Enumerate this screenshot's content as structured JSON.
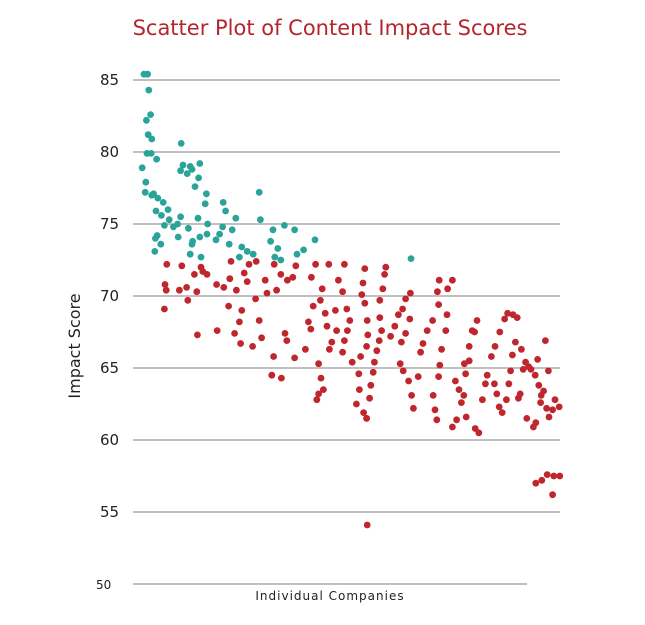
{
  "chart_data": {
    "type": "scatter",
    "title": "Scatter Plot of Content Impact Scores",
    "xlabel": "Individual Companies",
    "ylabel": "Impact Score",
    "ylim": [
      50,
      87
    ],
    "yticks": [
      50,
      55,
      60,
      65,
      70,
      75,
      80,
      85
    ],
    "grid": true,
    "colors": {
      "teal": "#2aa39a",
      "red": "#c0262d",
      "title": "#b3262e"
    },
    "series": [
      {
        "color": "#2aa39a",
        "points": [
          [
            1,
            85.4
          ],
          [
            1.6,
            85.4
          ],
          [
            1.8,
            84.3
          ],
          [
            1.4,
            82.2
          ],
          [
            2.1,
            82.6
          ],
          [
            1.7,
            81.2
          ],
          [
            2.3,
            80.9
          ],
          [
            1.5,
            79.9
          ],
          [
            2.2,
            79.9
          ],
          [
            3.1,
            79.5
          ],
          [
            0.7,
            78.9
          ],
          [
            1.3,
            77.9
          ],
          [
            2.6,
            77.1
          ],
          [
            1.2,
            77.2
          ],
          [
            2.3,
            77.0
          ],
          [
            3.3,
            76.8
          ],
          [
            4.2,
            76.5
          ],
          [
            5,
            76.0
          ],
          [
            3,
            75.9
          ],
          [
            3.9,
            75.6
          ],
          [
            5.2,
            75.3
          ],
          [
            4.4,
            74.9
          ],
          [
            3.2,
            74.2
          ],
          [
            2.9,
            74.0
          ],
          [
            3.8,
            73.6
          ],
          [
            2.8,
            73.1
          ],
          [
            7.2,
            80.6
          ],
          [
            7.5,
            79.1
          ],
          [
            7.1,
            78.7
          ],
          [
            8.2,
            78.5
          ],
          [
            9,
            78.8
          ],
          [
            10.1,
            78.2
          ],
          [
            9.5,
            77.6
          ],
          [
            8.7,
            79.0
          ],
          [
            10.3,
            79.2
          ],
          [
            11.4,
            77.1
          ],
          [
            11.2,
            76.4
          ],
          [
            10,
            75.4
          ],
          [
            8.4,
            74.7
          ],
          [
            11.6,
            75.0
          ],
          [
            10.3,
            74.1
          ],
          [
            9,
            73.6
          ],
          [
            8.7,
            72.9
          ],
          [
            10.5,
            72.7
          ],
          [
            9.1,
            73.8
          ],
          [
            11.5,
            74.3
          ],
          [
            7.1,
            75.5
          ],
          [
            6.6,
            75.0
          ],
          [
            5.9,
            74.8
          ],
          [
            6.7,
            74.1
          ],
          [
            14.2,
            76.5
          ],
          [
            14.6,
            75.9
          ],
          [
            16.3,
            75.4
          ],
          [
            14.1,
            74.8
          ],
          [
            13.6,
            74.3
          ],
          [
            15.7,
            74.6
          ],
          [
            13,
            73.9
          ],
          [
            15.2,
            73.6
          ],
          [
            17.3,
            73.4
          ],
          [
            18.2,
            73.1
          ],
          [
            19.2,
            72.9
          ],
          [
            16.9,
            72.7
          ],
          [
            20.2,
            77.2
          ],
          [
            20.4,
            75.3
          ],
          [
            22.1,
            73.8
          ],
          [
            22.5,
            74.6
          ],
          [
            23.3,
            73.3
          ],
          [
            24.4,
            74.9
          ],
          [
            22.8,
            72.7
          ],
          [
            23.8,
            72.5
          ],
          [
            26.1,
            74.6
          ],
          [
            27.6,
            73.2
          ],
          [
            29.5,
            73.9
          ],
          [
            26.5,
            72.9
          ],
          [
            45.5,
            72.6
          ]
        ]
      },
      {
        "color": "#c0262d",
        "points": [
          [
            4.8,
            72.2
          ],
          [
            4.5,
            70.8
          ],
          [
            4.7,
            70.4
          ],
          [
            4.4,
            69.1
          ],
          [
            7.3,
            72.1
          ],
          [
            8.1,
            70.6
          ],
          [
            6.9,
            70.4
          ],
          [
            8.3,
            69.7
          ],
          [
            9.4,
            71.5
          ],
          [
            10.8,
            71.7
          ],
          [
            9.8,
            70.3
          ],
          [
            10.5,
            72.0
          ],
          [
            11.5,
            71.5
          ],
          [
            13.1,
            70.8
          ],
          [
            9.9,
            67.3
          ],
          [
            13.2,
            67.6
          ],
          [
            15.5,
            72.4
          ],
          [
            15.3,
            71.2
          ],
          [
            14.3,
            70.6
          ],
          [
            15.1,
            69.3
          ],
          [
            16.4,
            70.4
          ],
          [
            17.7,
            71.6
          ],
          [
            18.5,
            72.2
          ],
          [
            19.7,
            72.4
          ],
          [
            18.2,
            71.0
          ],
          [
            17.3,
            69.0
          ],
          [
            16.9,
            68.2
          ],
          [
            16.1,
            67.4
          ],
          [
            17.1,
            66.7
          ],
          [
            19.1,
            66.5
          ],
          [
            19.6,
            69.8
          ],
          [
            20.2,
            68.3
          ],
          [
            21.2,
            71.1
          ],
          [
            21.5,
            70.2
          ],
          [
            20.6,
            67.1
          ],
          [
            22.7,
            72.2
          ],
          [
            23.8,
            71.5
          ],
          [
            25.8,
            71.3
          ],
          [
            26.3,
            72.1
          ],
          [
            24.9,
            71.1
          ],
          [
            23.1,
            70.4
          ],
          [
            24.5,
            67.4
          ],
          [
            22.6,
            65.8
          ],
          [
            22.3,
            64.5
          ],
          [
            23.9,
            64.3
          ],
          [
            24.8,
            66.9
          ],
          [
            26.1,
            65.7
          ],
          [
            27.9,
            66.3
          ],
          [
            28.4,
            68.2
          ],
          [
            28.8,
            67.7
          ],
          [
            29.2,
            69.3
          ],
          [
            28.9,
            71.3
          ],
          [
            29.6,
            72.2
          ],
          [
            31.8,
            72.2
          ],
          [
            30.7,
            70.5
          ],
          [
            30.4,
            69.7
          ],
          [
            31.2,
            68.8
          ],
          [
            31.5,
            67.9
          ],
          [
            32.9,
            69.0
          ],
          [
            33.1,
            67.6
          ],
          [
            32.3,
            66.8
          ],
          [
            31.9,
            66.3
          ],
          [
            30.1,
            65.3
          ],
          [
            30.5,
            64.3
          ],
          [
            30.9,
            63.5
          ],
          [
            30.1,
            63.2
          ],
          [
            29.8,
            62.8
          ],
          [
            34.4,
            72.2
          ],
          [
            33.4,
            71.1
          ],
          [
            34.1,
            70.3
          ],
          [
            34.8,
            69.1
          ],
          [
            35.3,
            68.3
          ],
          [
            34.9,
            67.6
          ],
          [
            34.4,
            66.9
          ],
          [
            34.1,
            66.1
          ],
          [
            35.7,
            65.4
          ],
          [
            37.8,
            71.9
          ],
          [
            37.5,
            70.9
          ],
          [
            37.3,
            70.1
          ],
          [
            37.8,
            69.5
          ],
          [
            38.2,
            68.3
          ],
          [
            38.3,
            67.3
          ],
          [
            38.1,
            66.5
          ],
          [
            37.1,
            65.8
          ],
          [
            36.8,
            64.6
          ],
          [
            36.9,
            63.5
          ],
          [
            36.4,
            62.5
          ],
          [
            37.6,
            61.9
          ],
          [
            38.1,
            61.5
          ],
          [
            38.2,
            54.1
          ],
          [
            41.3,
            72.0
          ],
          [
            41.1,
            71.5
          ],
          [
            40.8,
            70.5
          ],
          [
            40.3,
            69.7
          ],
          [
            40.3,
            68.5
          ],
          [
            40.6,
            67.6
          ],
          [
            40.2,
            66.9
          ],
          [
            39.8,
            66.2
          ],
          [
            39.4,
            65.4
          ],
          [
            39.2,
            64.7
          ],
          [
            38.8,
            63.8
          ],
          [
            38.6,
            62.9
          ],
          [
            38.1,
            61.5
          ],
          [
            42.1,
            67.2
          ],
          [
            42.8,
            67.9
          ],
          [
            43.4,
            68.7
          ],
          [
            44.1,
            69.1
          ],
          [
            44.6,
            69.8
          ],
          [
            45.4,
            70.2
          ],
          [
            45.3,
            68.4
          ],
          [
            44.6,
            67.4
          ],
          [
            43.9,
            66.8
          ],
          [
            43.7,
            65.3
          ],
          [
            44.2,
            64.8
          ],
          [
            45.1,
            64.1
          ],
          [
            45.6,
            63.1
          ],
          [
            45.9,
            62.2
          ],
          [
            46.7,
            64.4
          ],
          [
            47.1,
            66.1
          ],
          [
            47.5,
            66.7
          ],
          [
            48.2,
            67.6
          ],
          [
            49.1,
            68.3
          ],
          [
            50.1,
            69.4
          ],
          [
            49.9,
            70.3
          ],
          [
            50.2,
            71.1
          ],
          [
            51.6,
            70.5
          ],
          [
            52.4,
            71.1
          ],
          [
            51.5,
            68.7
          ],
          [
            51.3,
            67.6
          ],
          [
            50.6,
            66.3
          ],
          [
            50.3,
            65.2
          ],
          [
            50.1,
            64.4
          ],
          [
            49.2,
            63.1
          ],
          [
            49.5,
            62.1
          ],
          [
            49.8,
            61.4
          ],
          [
            52.4,
            60.9
          ],
          [
            53.1,
            61.4
          ],
          [
            52.9,
            64.1
          ],
          [
            53.5,
            63.5
          ],
          [
            54.4,
            65.3
          ],
          [
            55.2,
            66.5
          ],
          [
            55.7,
            67.6
          ],
          [
            56.5,
            68.3
          ],
          [
            56.1,
            67.5
          ],
          [
            55.2,
            65.5
          ],
          [
            54.6,
            64.6
          ],
          [
            54.3,
            63.1
          ],
          [
            53.9,
            62.6
          ],
          [
            54.7,
            61.6
          ],
          [
            56.2,
            60.8
          ],
          [
            56.8,
            60.5
          ],
          [
            57.4,
            62.8
          ],
          [
            57.9,
            63.9
          ],
          [
            58.2,
            64.5
          ],
          [
            58.9,
            65.8
          ],
          [
            59.5,
            66.5
          ],
          [
            60.3,
            67.5
          ],
          [
            61.1,
            68.4
          ],
          [
            61.6,
            68.8
          ],
          [
            62.5,
            68.7
          ],
          [
            63.2,
            68.5
          ],
          [
            62.9,
            66.8
          ],
          [
            62.4,
            65.9
          ],
          [
            62.1,
            64.8
          ],
          [
            61.8,
            63.9
          ],
          [
            61.4,
            62.8
          ],
          [
            60.7,
            61.9
          ],
          [
            60.2,
            62.3
          ],
          [
            59.8,
            63.2
          ],
          [
            59.4,
            63.9
          ],
          [
            63.9,
            66.3
          ],
          [
            64.6,
            65.4
          ],
          [
            65.1,
            65.1
          ],
          [
            64.2,
            64.9
          ],
          [
            63.7,
            63.2
          ],
          [
            63.4,
            62.9
          ],
          [
            64.8,
            61.5
          ],
          [
            65.9,
            60.9
          ],
          [
            66.3,
            61.2
          ],
          [
            67.1,
            62.6
          ],
          [
            67.6,
            63.4
          ],
          [
            68.4,
            64.8
          ],
          [
            67.9,
            66.9
          ],
          [
            66.6,
            65.6
          ],
          [
            65.5,
            64.9
          ],
          [
            66.2,
            64.5
          ],
          [
            66.8,
            63.8
          ],
          [
            67.2,
            63.1
          ],
          [
            68.1,
            62.2
          ],
          [
            68.5,
            61.6
          ],
          [
            69.1,
            62.1
          ],
          [
            69.5,
            62.8
          ],
          [
            70.2,
            62.3
          ],
          [
            69.3,
            57.5
          ],
          [
            69.1,
            56.2
          ],
          [
            68.2,
            57.6
          ],
          [
            67.3,
            57.2
          ],
          [
            70.3,
            57.5
          ],
          [
            66.3,
            57.0
          ]
        ]
      }
    ]
  }
}
